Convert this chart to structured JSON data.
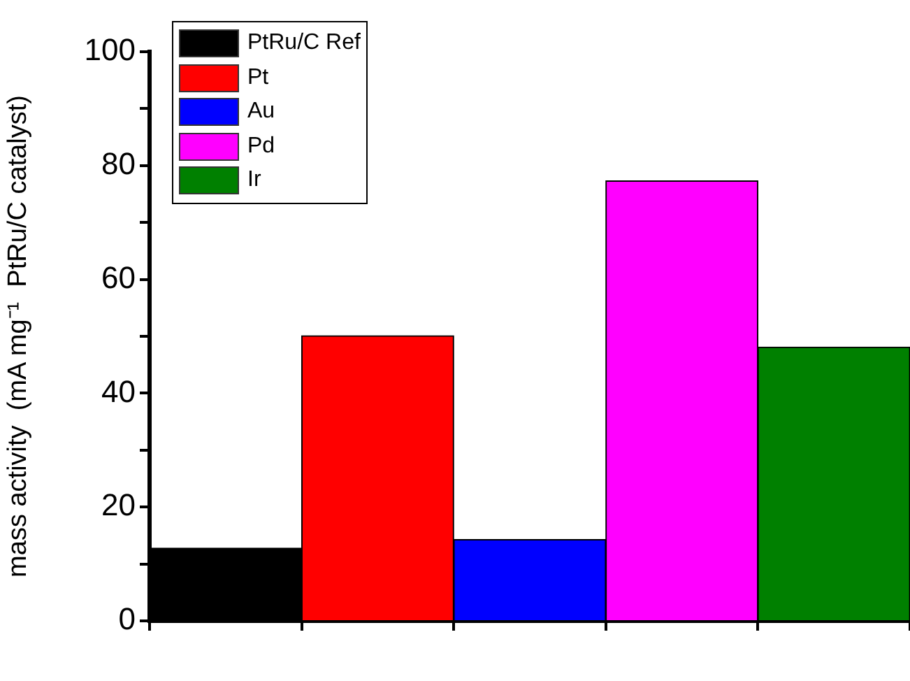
{
  "chart_data": {
    "type": "bar",
    "ylabel": "mass activity  (mA mg⁻¹  PtRu/C catalyst)",
    "categories": [
      null,
      null,
      null,
      null,
      null
    ],
    "series": [
      {
        "name": "PtRu/C Ref",
        "color": "#000000",
        "values": [
          12.8,
          null,
          null,
          null,
          null
        ]
      },
      {
        "name": "Pt",
        "color": "#ff0000",
        "values": [
          null,
          50.1,
          null,
          null,
          null
        ]
      },
      {
        "name": "Au",
        "color": "#0000ff",
        "values": [
          null,
          null,
          14.3,
          null,
          null
        ]
      },
      {
        "name": "Pd",
        "color": "#ff00ff",
        "values": [
          null,
          null,
          null,
          77.3,
          null
        ]
      },
      {
        "name": "Ir",
        "color": "#008000",
        "values": [
          null,
          null,
          null,
          null,
          48.1
        ]
      }
    ],
    "ylim": [
      0,
      100
    ],
    "yticks": [
      0,
      {
        "value": 10,
        "label": null
      },
      20,
      {
        "value": 30,
        "label": null
      },
      40,
      {
        "value": 50,
        "label": null
      },
      60,
      {
        "value": 70,
        "label": null
      },
      80,
      {
        "value": 90,
        "label": null
      },
      100
    ],
    "legend": "top left",
    "grid": false
  }
}
